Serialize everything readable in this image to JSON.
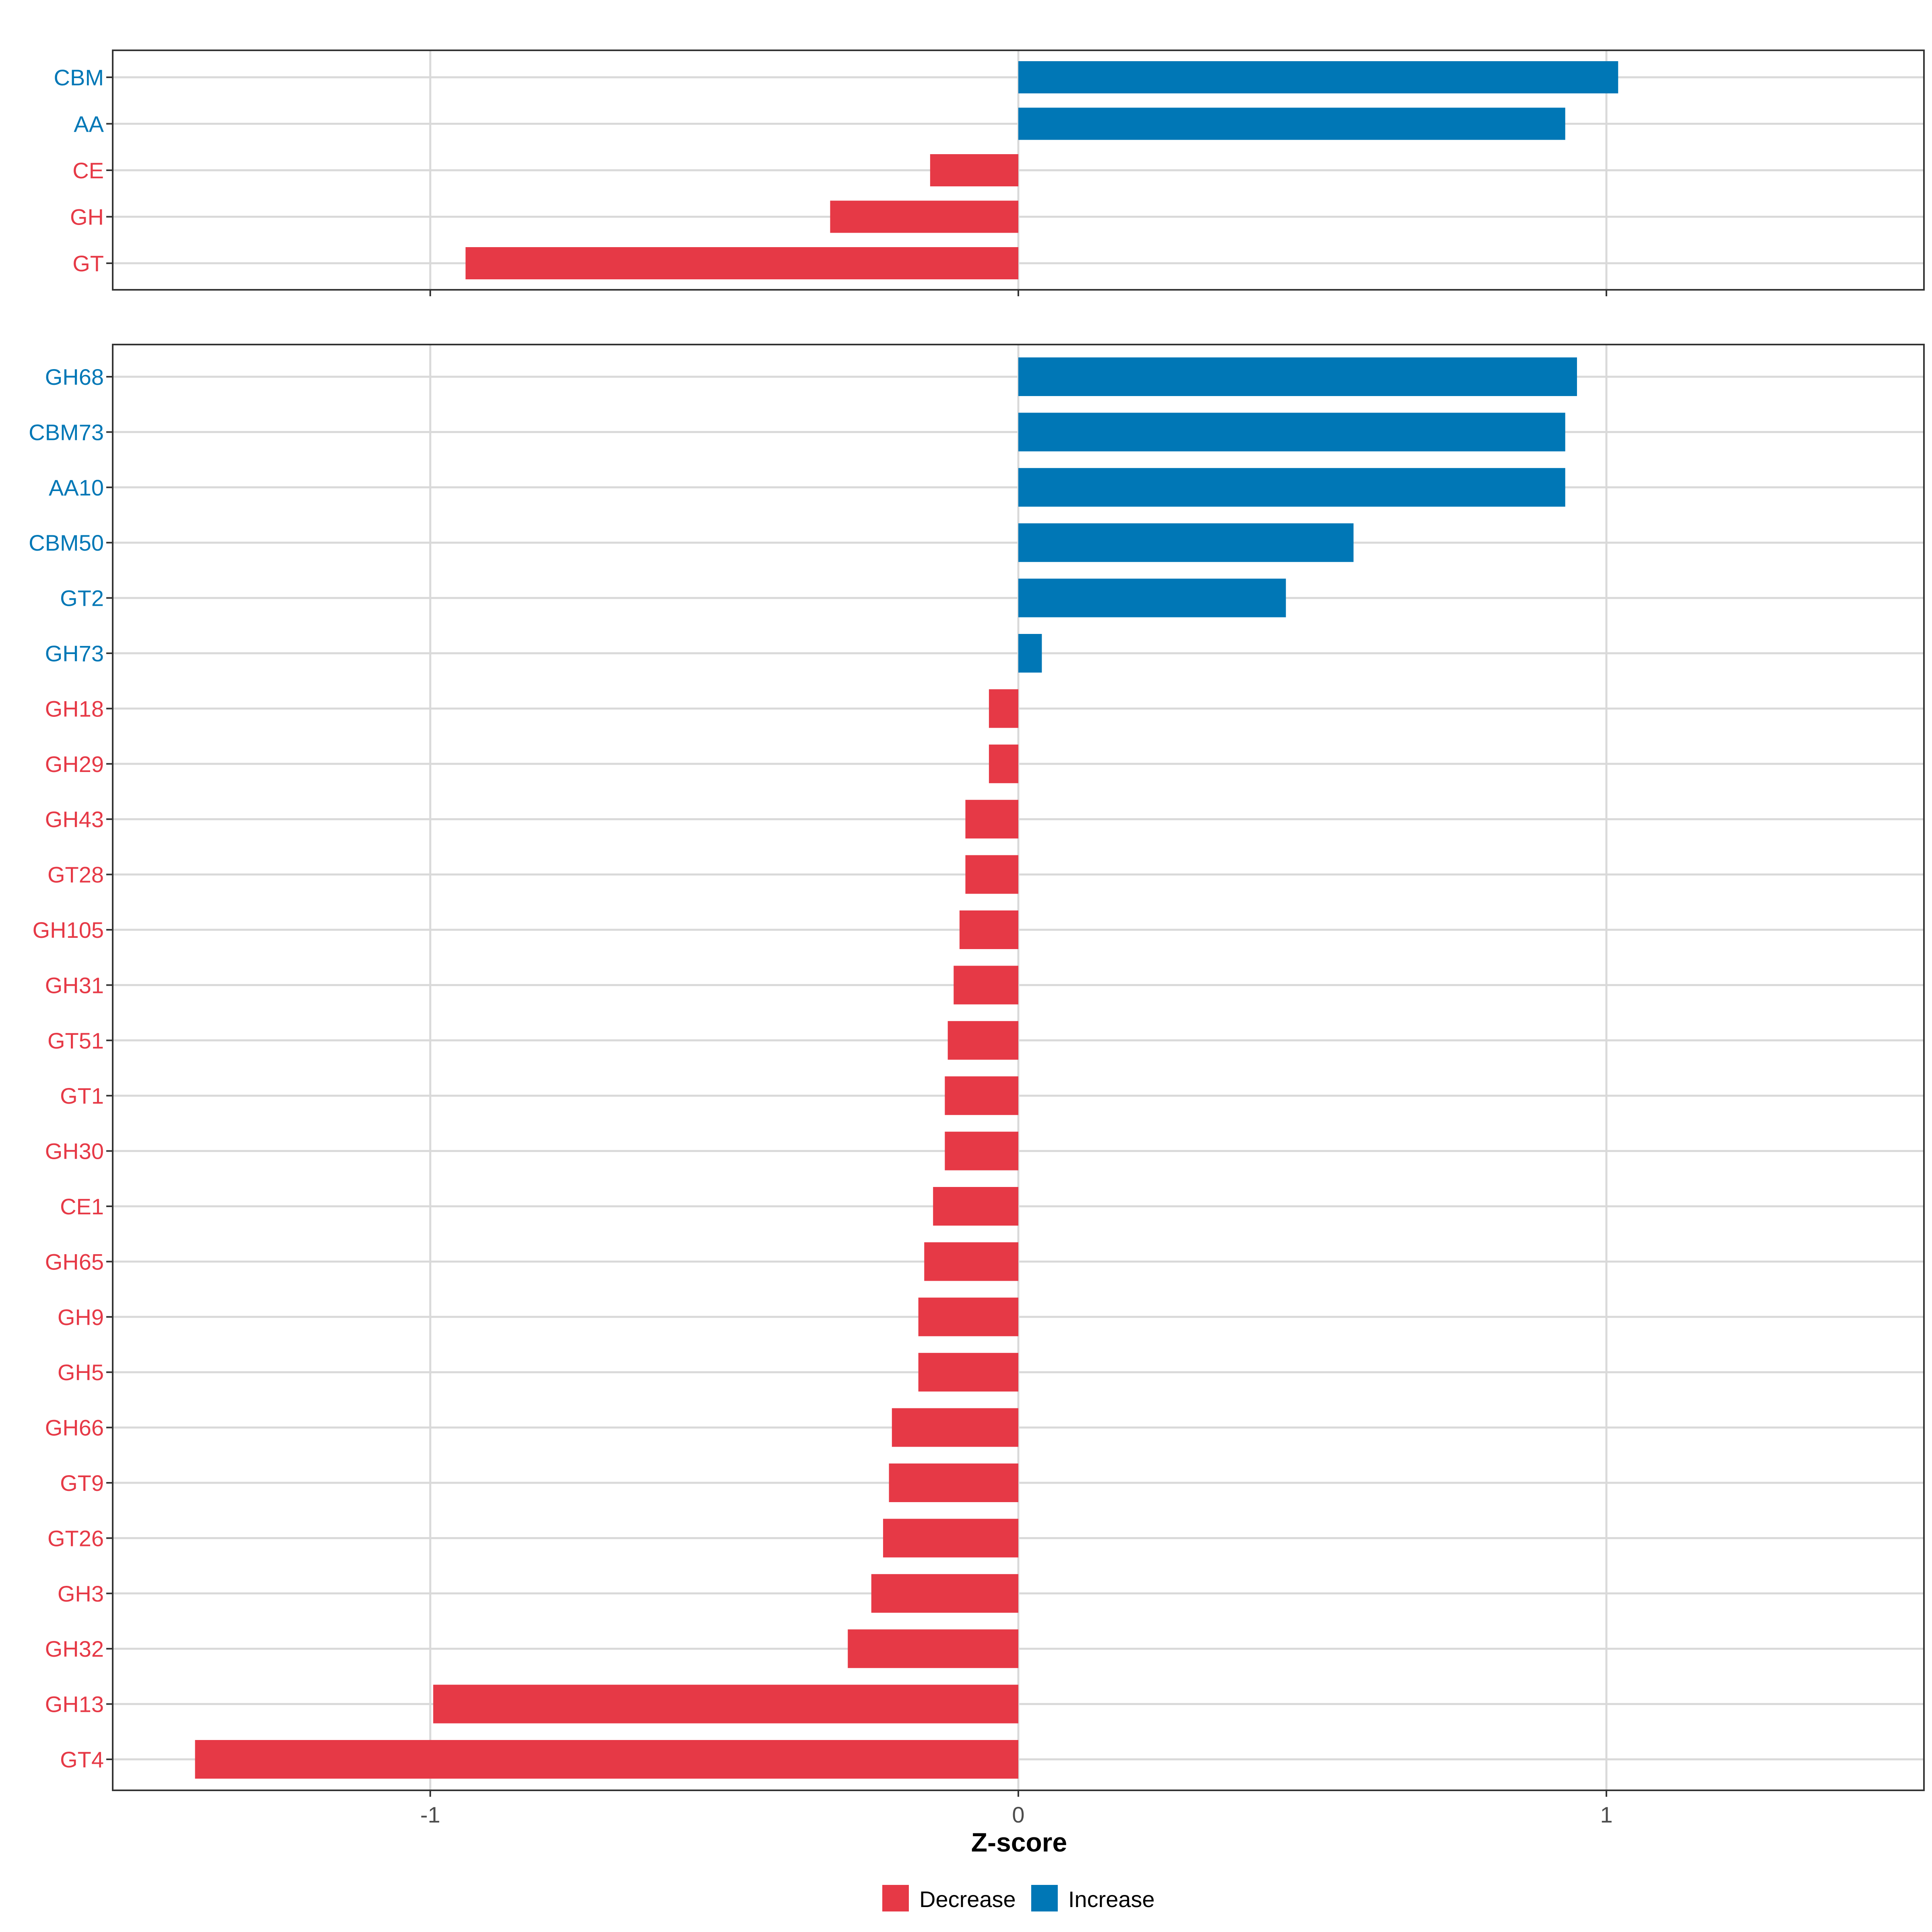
{
  "colors": {
    "decrease": "#E63946",
    "increase": "#0077B6",
    "grid": "#D9D9D9",
    "axis": "#333333",
    "text": "#000000"
  },
  "chart_data": [
    {
      "type": "bar",
      "orientation": "horizontal",
      "panel": "top",
      "categories": [
        "CBM",
        "AA",
        "CE",
        "GH",
        "GT"
      ],
      "values": [
        1.02,
        0.93,
        -0.15,
        -0.32,
        -0.94
      ],
      "groups": [
        "Increase",
        "Increase",
        "Decrease",
        "Decrease",
        "Decrease"
      ],
      "xlim": [
        -1.54,
        1.54
      ],
      "xticks": [
        -1,
        0,
        1
      ],
      "xtick_labels": [
        "-1",
        "0",
        "1"
      ],
      "grid": true
    },
    {
      "type": "bar",
      "orientation": "horizontal",
      "panel": "bottom",
      "categories": [
        "GH68",
        "CBM73",
        "AA10",
        "CBM50",
        "GT2",
        "GH73",
        "GH18",
        "GH29",
        "GH43",
        "GT28",
        "GH105",
        "GH31",
        "GT51",
        "GT1",
        "GH30",
        "CE1",
        "GH65",
        "GH9",
        "GH5",
        "GH66",
        "GT9",
        "GT26",
        "GH3",
        "GH32",
        "GH13",
        "GT4"
      ],
      "values": [
        0.95,
        0.93,
        0.93,
        0.57,
        0.455,
        0.04,
        -0.05,
        -0.05,
        -0.09,
        -0.09,
        -0.1,
        -0.11,
        -0.12,
        -0.125,
        -0.125,
        -0.145,
        -0.16,
        -0.17,
        -0.17,
        -0.215,
        -0.22,
        -0.23,
        -0.25,
        -0.29,
        -0.995,
        -1.4
      ],
      "groups": [
        "Increase",
        "Increase",
        "Increase",
        "Increase",
        "Increase",
        "Increase",
        "Decrease",
        "Decrease",
        "Decrease",
        "Decrease",
        "Decrease",
        "Decrease",
        "Decrease",
        "Decrease",
        "Decrease",
        "Decrease",
        "Decrease",
        "Decrease",
        "Decrease",
        "Decrease",
        "Decrease",
        "Decrease",
        "Decrease",
        "Decrease",
        "Decrease",
        "Decrease"
      ],
      "xlim": [
        -1.54,
        1.54
      ],
      "xticks": [
        -1,
        0,
        1
      ],
      "xtick_labels": [
        "-1",
        "0",
        "1"
      ],
      "xlabel": "Z-score",
      "grid": true
    }
  ],
  "legend": {
    "items": [
      {
        "label": "Decrease",
        "color_key": "decrease"
      },
      {
        "label": "Increase",
        "color_key": "increase"
      }
    ],
    "position": "bottom-center"
  }
}
